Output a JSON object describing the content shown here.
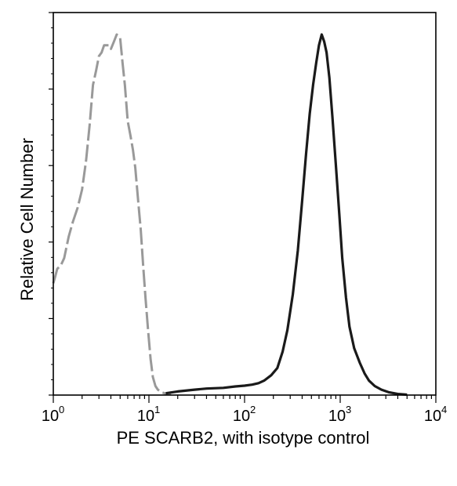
{
  "chart_data": {
    "type": "line",
    "title": "",
    "xlabel": "PE  SCARB2,  with isotype control",
    "ylabel": "Relative Cell Number",
    "x_scale": "log",
    "xlim": [
      1,
      10000
    ],
    "ylim": [
      0,
      100
    ],
    "x_ticks": [
      {
        "value": 1,
        "base": "10",
        "exp": "0"
      },
      {
        "value": 10,
        "base": "10",
        "exp": "1"
      },
      {
        "value": 100,
        "base": "10",
        "exp": "2"
      },
      {
        "value": 1000,
        "base": "10",
        "exp": "3"
      },
      {
        "value": 10000,
        "base": "10",
        "exp": "4"
      }
    ],
    "grid": false,
    "legend": "none",
    "series": [
      {
        "color": "#999999",
        "style": "dashed",
        "x": [
          1.0,
          1.05,
          1.1,
          1.2,
          1.3,
          1.45,
          1.6,
          1.8,
          2.0,
          2.2,
          2.4,
          2.6,
          2.8,
          3.0,
          3.2,
          3.4,
          3.6,
          3.8,
          4.0,
          4.3,
          4.6,
          5.0,
          5.3,
          5.6,
          6.0,
          6.4,
          6.8,
          7.2,
          7.7,
          8.2,
          8.7,
          9.2,
          9.8,
          10.4,
          11.0,
          11.7,
          12.4,
          13.5,
          15.0,
          17.0
        ],
        "y": [
          31,
          33,
          35,
          36,
          38,
          44,
          48,
          52,
          57,
          65,
          75,
          86,
          90,
          94,
          95,
          97,
          97,
          97,
          96,
          98,
          100,
          99,
          92,
          86,
          76,
          72,
          68,
          63,
          54,
          46,
          36,
          27,
          18,
          10,
          5,
          2.5,
          1.5,
          0.8,
          0.4,
          0.2
        ]
      },
      {
        "color": "#1a1a1a",
        "style": "solid",
        "x": [
          15,
          20,
          30,
          40,
          60,
          80,
          100,
          120,
          140,
          160,
          190,
          220,
          250,
          280,
          320,
          360,
          400,
          440,
          480,
          520,
          560,
          600,
          640,
          680,
          720,
          770,
          830,
          900,
          980,
          1050,
          1150,
          1250,
          1400,
          1600,
          1800,
          2000,
          2300,
          2700,
          3200,
          4000,
          5000
        ],
        "y": [
          0.5,
          1.0,
          1.5,
          1.8,
          2.0,
          2.4,
          2.6,
          2.9,
          3.3,
          4.0,
          5.5,
          7.5,
          12,
          18,
          28,
          40,
          54,
          67,
          78,
          86,
          92,
          97,
          100,
          98,
          95,
          88,
          77,
          64,
          50,
          38,
          27,
          19,
          13,
          9,
          6,
          4,
          2.5,
          1.5,
          0.8,
          0.3,
          0.1
        ]
      }
    ]
  }
}
